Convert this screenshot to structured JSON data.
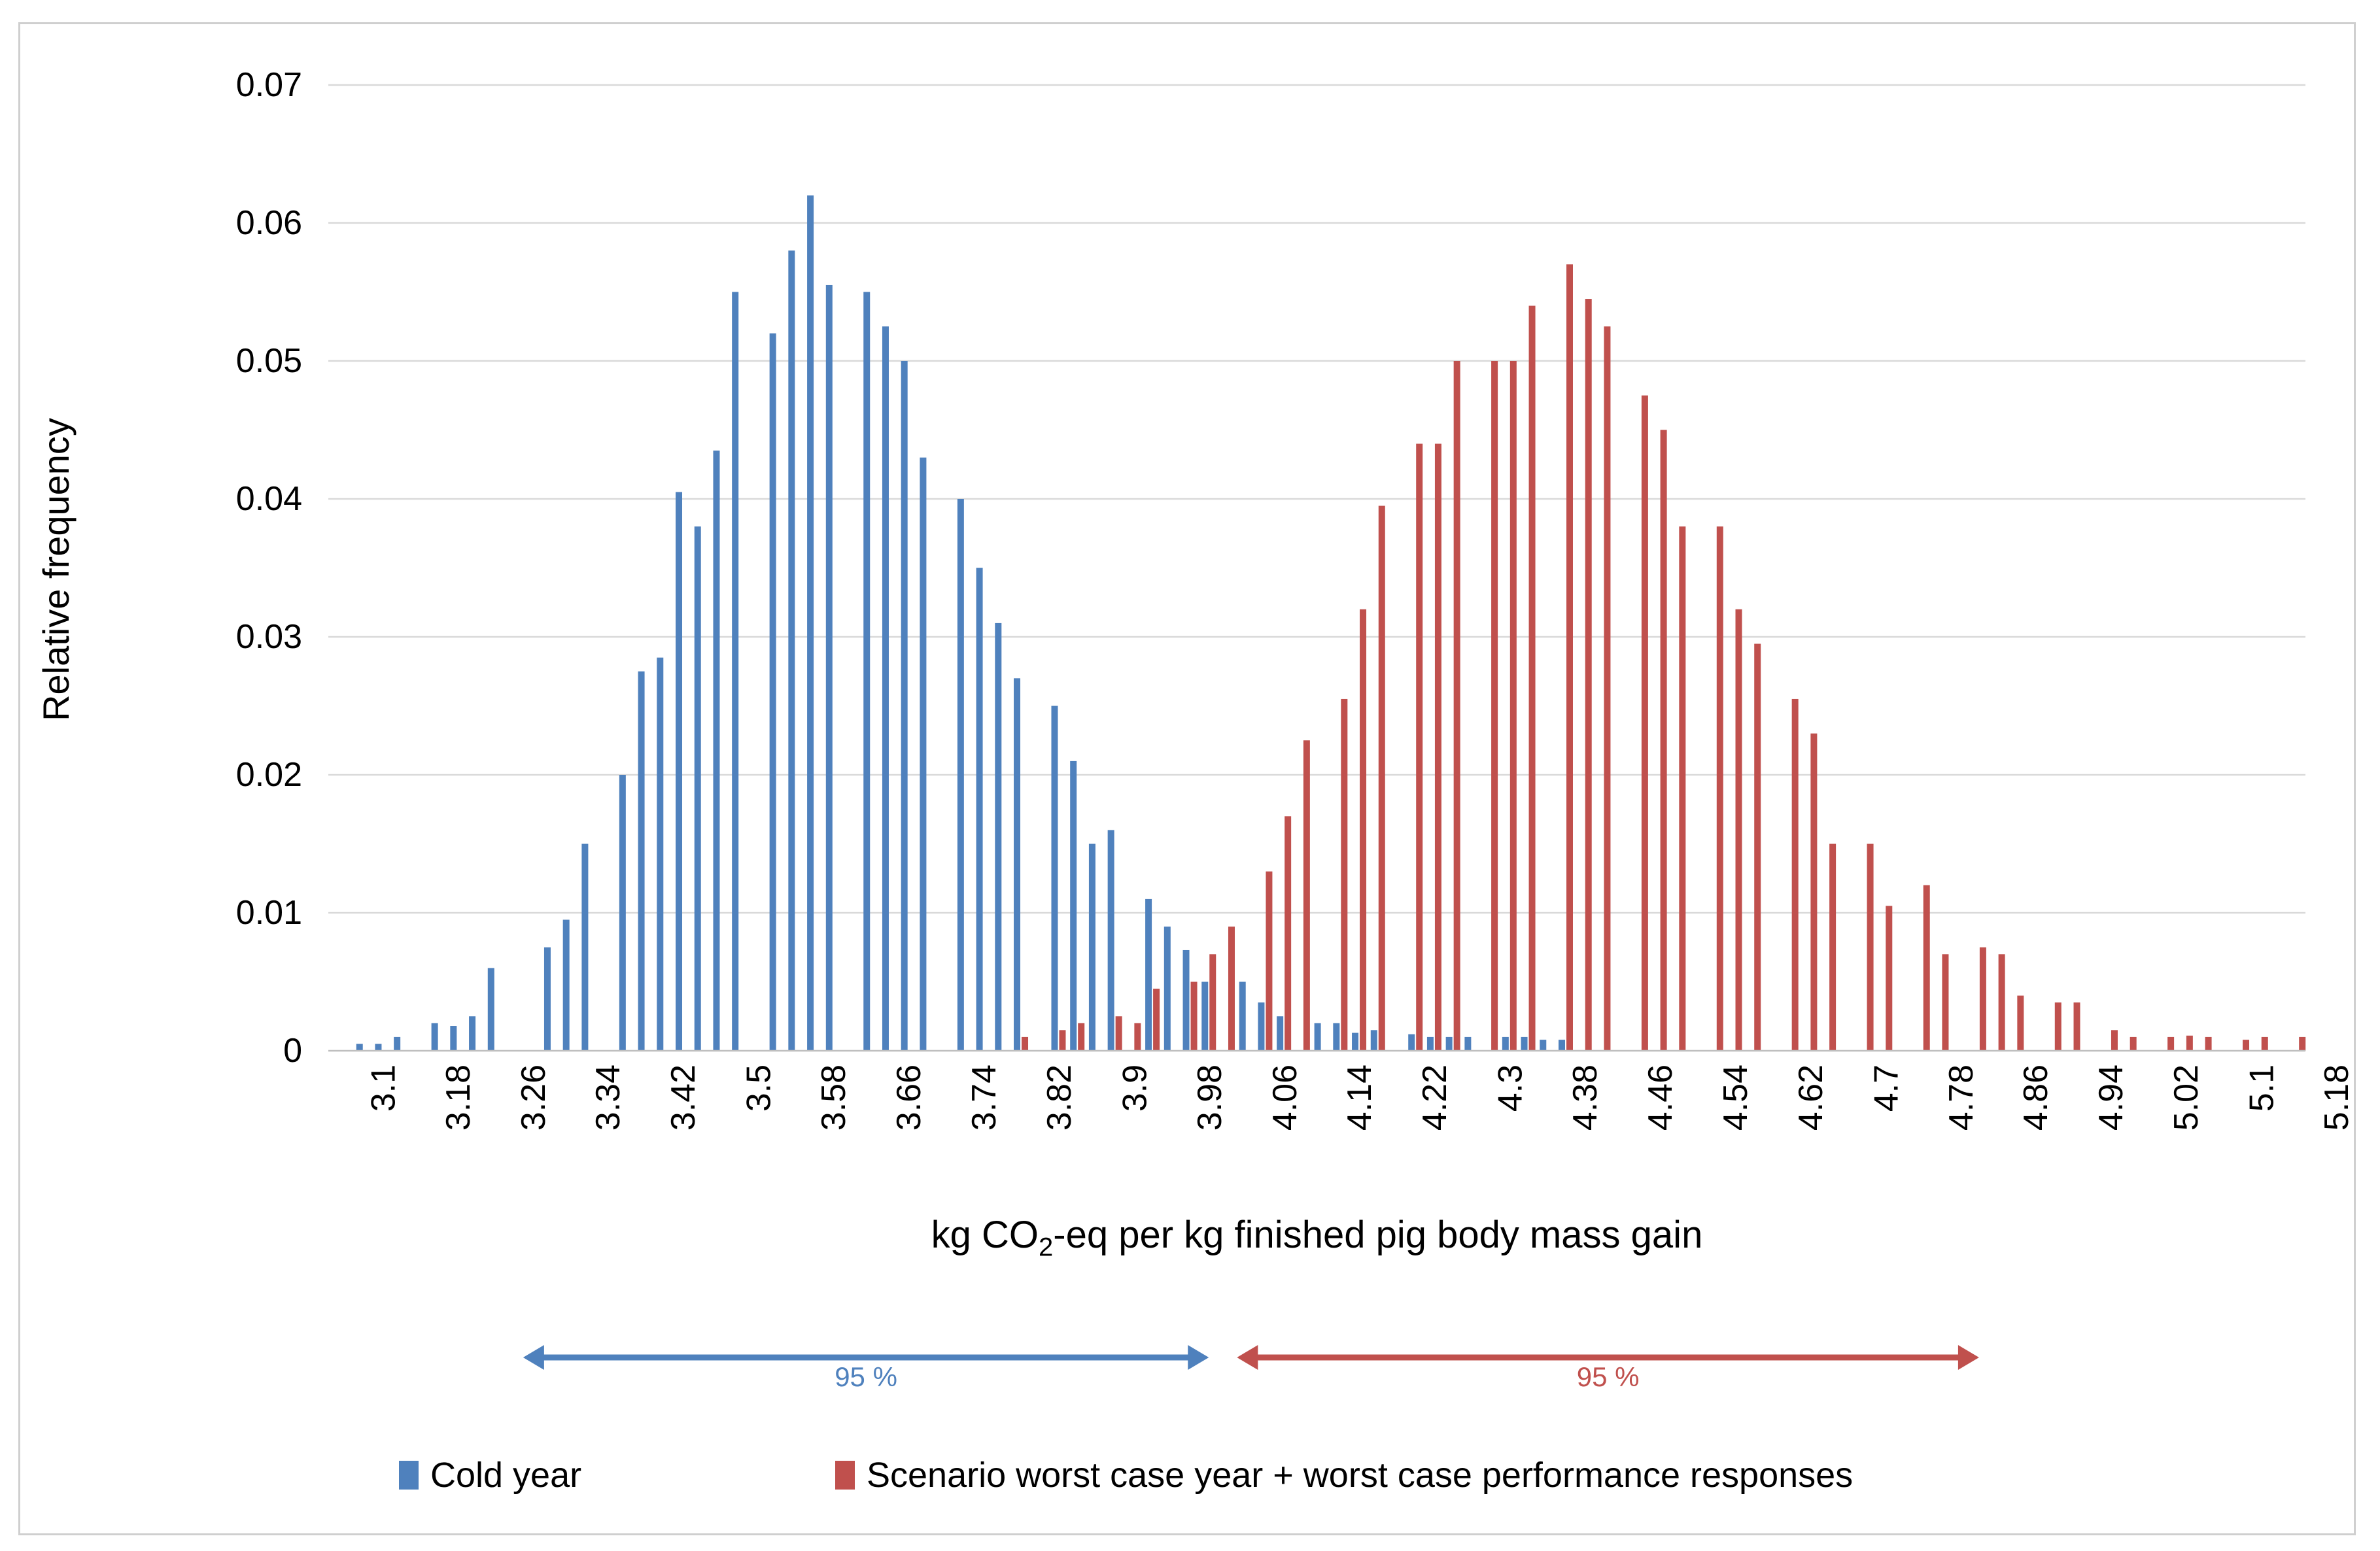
{
  "figure": {
    "background": "#ffffff",
    "border_color": "#cfcfcf"
  },
  "y_axis": {
    "title": "Relative frequency",
    "ticks": [
      "0.07",
      "0.06",
      "0.05",
      "0.04",
      "0.03",
      "0.02",
      "0.01",
      "0"
    ]
  },
  "x_axis": {
    "title_prefix": "kg CO",
    "title_sub": "2",
    "title_suffix": "-eq per kg finished pig body mass gain",
    "ticks": [
      "3.1",
      "3.18",
      "3.26",
      "3.34",
      "3.42",
      "3.5",
      "3.58",
      "3.66",
      "3.74",
      "3.82",
      "3.9",
      "3.98",
      "4.06",
      "4.14",
      "4.22",
      "4.3",
      "4.38",
      "4.46",
      "4.54",
      "4.62",
      "4.7",
      "4.78",
      "4.86",
      "4.94",
      "5.02",
      "5.1",
      "5.18"
    ]
  },
  "legend": [
    {
      "label": "Cold year",
      "color": "#4F81BD"
    },
    {
      "label": "Scenario worst case year + worst case performance responses",
      "color": "#C0504D"
    }
  ],
  "annotations": {
    "blue_interval": {
      "label": "95 %",
      "x_from": 3.29,
      "x_to": 4.02,
      "color": "#4F81BD"
    },
    "red_interval": {
      "label": "95 %",
      "x_from": 4.05,
      "x_to": 4.84,
      "color": "#C0504D"
    }
  },
  "chart_data": {
    "type": "bar",
    "title": "",
    "xlabel": "kg CO2-eq per kg finished pig body mass gain",
    "ylabel": "Relative frequency",
    "x_start": 3.1,
    "x_step": 0.02,
    "x_end": 5.18,
    "ylim": [
      0,
      0.07
    ],
    "y_gridline_step": 0.01,
    "grid": true,
    "legend_position": "bottom",
    "gridline_color": "#d9d9d9",
    "axis_line_color": "#bfbfbf",
    "series": [
      {
        "name": "Cold year",
        "color": "#4F81BD",
        "values": [
          0,
          0.0005,
          0.0005,
          0.001,
          0,
          0.002,
          0.0018,
          0.0025,
          0.006,
          0,
          0,
          0.0075,
          0.0095,
          0.015,
          0,
          0.02,
          0.0275,
          0.0285,
          0.0405,
          0.038,
          0.0435,
          0.055,
          0,
          0.052,
          0.058,
          0.062,
          0.0555,
          0,
          0.055,
          0.0525,
          0.05,
          0.043,
          0,
          0.04,
          0.035,
          0.031,
          0.027,
          0,
          0.025,
          0.021,
          0.015,
          0.016,
          0,
          0.011,
          0.009,
          0.0073,
          0.005,
          0,
          0.005,
          0.0035,
          0.0025,
          0,
          0.002,
          0.002,
          0.0013,
          0.0015,
          0,
          0.0012,
          0.001,
          0.001,
          0.001,
          0,
          0.001,
          0.001,
          0.0008,
          0.0008,
          0,
          0,
          0,
          0,
          0,
          0,
          0,
          0,
          0,
          0,
          0,
          0,
          0,
          0,
          0,
          0,
          0,
          0,
          0,
          0,
          0,
          0,
          0,
          0,
          0,
          0,
          0,
          0,
          0,
          0,
          0,
          0,
          0,
          0,
          0,
          0,
          0,
          0,
          0
        ]
      },
      {
        "name": "Scenario worst case year + worst case performance responses",
        "color": "#C0504D",
        "values": [
          0,
          0,
          0,
          0,
          0,
          0,
          0,
          0,
          0,
          0,
          0,
          0,
          0,
          0,
          0,
          0,
          0,
          0,
          0,
          0,
          0,
          0,
          0,
          0,
          0,
          0,
          0,
          0,
          0,
          0,
          0,
          0,
          0,
          0,
          0,
          0,
          0.001,
          0,
          0.0015,
          0.002,
          0,
          0.0025,
          0.002,
          0.0045,
          0,
          0.005,
          0.007,
          0.009,
          0,
          0.013,
          0.017,
          0.0225,
          0,
          0.0255,
          0.032,
          0.0395,
          0,
          0.044,
          0.044,
          0.05,
          0,
          0.05,
          0.05,
          0.054,
          0,
          0.057,
          0.0545,
          0.0525,
          0,
          0.0475,
          0.045,
          0.038,
          0,
          0.038,
          0.032,
          0.0295,
          0,
          0.0255,
          0.023,
          0.015,
          0,
          0.015,
          0.0105,
          0,
          0.012,
          0.007,
          0,
          0.0075,
          0.007,
          0.004,
          0,
          0.0035,
          0.0035,
          0,
          0.0015,
          0.001,
          0,
          0.001,
          0.0011,
          0.001,
          0,
          0.0008,
          0.001,
          0,
          0.001
        ]
      }
    ]
  }
}
